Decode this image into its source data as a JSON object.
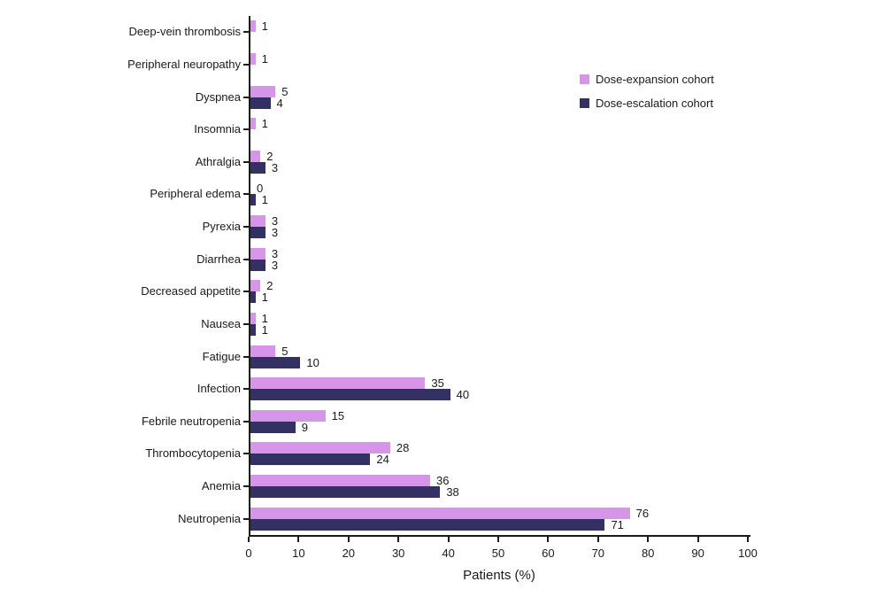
{
  "chart_data": {
    "type": "bar",
    "orientation": "horizontal",
    "title": "",
    "xlabel": "Patients (%)",
    "xlim": [
      0,
      100
    ],
    "xticks": [
      0,
      10,
      20,
      30,
      40,
      50,
      60,
      70,
      80,
      90,
      100
    ],
    "grid": false,
    "legend_position": "upper right",
    "categories": [
      "Deep-vein thrombosis",
      "Peripheral neuropathy",
      "Dyspnea",
      "Insomnia",
      "Athralgia",
      "Peripheral edema",
      "Pyrexia",
      "Diarrhea",
      "Decreased appetite",
      "Nausea",
      "Fatigue",
      "Infection",
      "Febrile neutropenia",
      "Thrombocytopenia",
      "Anemia",
      "Neutropenia"
    ],
    "series": [
      {
        "name": "Dose-expansion cohort",
        "color": "#d795ea",
        "values": [
          1,
          1,
          5,
          1,
          2,
          0,
          3,
          3,
          2,
          1,
          5,
          35,
          15,
          28,
          36,
          76
        ]
      },
      {
        "name": "Dose-escalation cohort",
        "color": "#333064",
        "values": [
          null,
          null,
          4,
          null,
          3,
          1,
          3,
          3,
          1,
          1,
          10,
          40,
          9,
          24,
          38,
          71
        ]
      }
    ]
  },
  "colors": {
    "axis": "#1a1a1a",
    "text": "#1a1a1a",
    "background": "#ffffff"
  }
}
